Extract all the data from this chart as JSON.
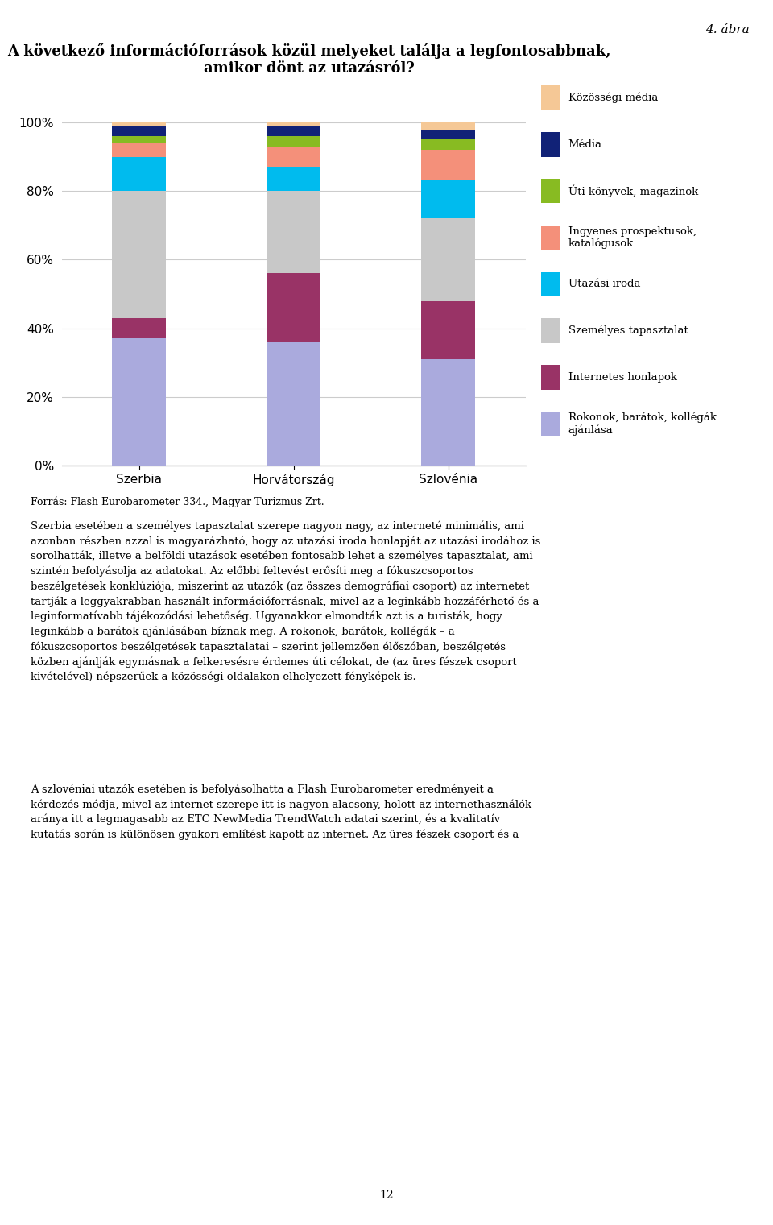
{
  "title_line1": "A következő információforrások közül melyeket találja a legfontosabbnak,",
  "title_line2": "amikor dönt az utazásról?",
  "subtitle": "4. ábra",
  "source": "Forrás: Flash Eurobarometer 334., Magyar Turizmus Zrt.",
  "categories": [
    "Szerbia",
    "Horvátország",
    "Szlovénia"
  ],
  "series": [
    {
      "label": "Rokonok, barátok, kollégák\najánlása",
      "color": "#AAAADD",
      "values": [
        37,
        36,
        31
      ]
    },
    {
      "label": "Internetes honlapok",
      "color": "#993366",
      "values": [
        6,
        20,
        17
      ]
    },
    {
      "label": "Személyes tapasztalat",
      "color": "#C8C8C8",
      "values": [
        37,
        24,
        24
      ]
    },
    {
      "label": "Utazási iroda",
      "color": "#00BBEE",
      "values": [
        10,
        7,
        11
      ]
    },
    {
      "label": "Ingyenes prospektusok,\nkatalógusok",
      "color": "#F4907A",
      "values": [
        4,
        6,
        9
      ]
    },
    {
      "label": "Úti könyvek, magazinok",
      "color": "#88BB22",
      "values": [
        2,
        3,
        3
      ]
    },
    {
      "label": "Média",
      "color": "#112277",
      "values": [
        3,
        3,
        3
      ]
    },
    {
      "label": "Közösségi média",
      "color": "#F5C896",
      "values": [
        1,
        1,
        2
      ]
    }
  ],
  "ylim": [
    0,
    100
  ],
  "yticks": [
    0,
    20,
    40,
    60,
    80,
    100
  ],
  "ytick_labels": [
    "0%",
    "20%",
    "40%",
    "60%",
    "80%",
    "100%"
  ],
  "background_color": "#FFFFFF",
  "grid_color": "#CCCCCC",
  "bar_width": 0.35,
  "title_fontsize": 14,
  "axis_fontsize": 11,
  "legend_fontsize": 10,
  "source_fontsize": 9
}
